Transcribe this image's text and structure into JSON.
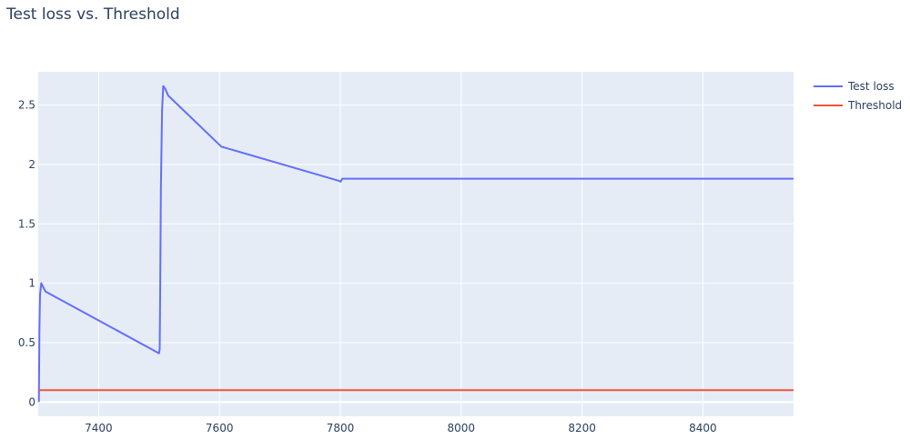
{
  "chart_data": {
    "type": "line",
    "title": "Test loss vs. Threshold",
    "xlabel": "",
    "ylabel": "",
    "xlim": [
      7300,
      8550
    ],
    "ylim": [
      -0.12,
      2.78
    ],
    "xticks": [
      7400,
      7600,
      7800,
      8000,
      8200,
      8400
    ],
    "yticks": [
      0,
      0.5,
      1,
      1.5,
      2,
      2.5
    ],
    "xtick_labels": [
      "7400",
      "7600",
      "7800",
      "8000",
      "8200",
      "8400"
    ],
    "ytick_labels": [
      "0",
      "0.5",
      "1",
      "1.5",
      "2",
      "2.5"
    ],
    "grid": true,
    "legend_position": "top-right",
    "series": [
      {
        "name": "Test loss",
        "color": "#636efa",
        "x": [
          7301,
          7301.5,
          7302,
          7303,
          7305,
          7308,
          7312,
          7500,
          7501,
          7502,
          7503,
          7505,
          7507,
          7510,
          7515,
          7603,
          7799,
          7800,
          7801,
          7803,
          8550
        ],
        "y": [
          0.0,
          0.3,
          0.6,
          0.9,
          1.0,
          0.97,
          0.93,
          0.41,
          0.45,
          1.0,
          1.8,
          2.45,
          2.66,
          2.64,
          2.58,
          2.15,
          1.86,
          1.855,
          1.86,
          1.88,
          1.88
        ]
      },
      {
        "name": "Threshold",
        "color": "#ef553b",
        "x": [
          7300,
          8550
        ],
        "y": [
          0.1,
          0.1
        ]
      }
    ]
  }
}
